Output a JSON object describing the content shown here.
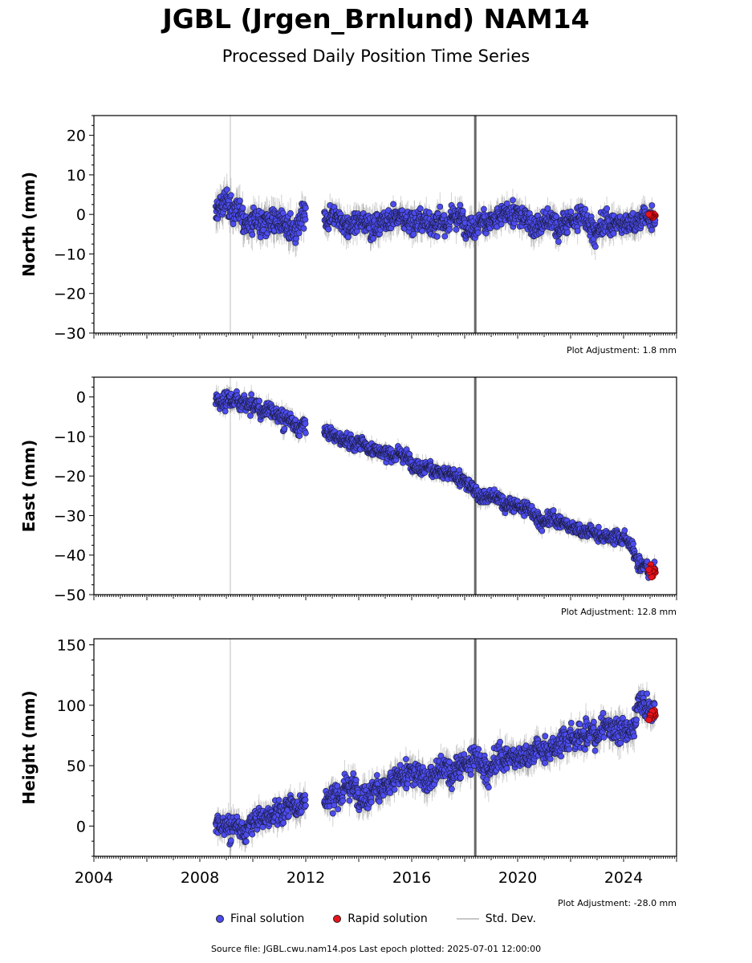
{
  "header": {
    "title": "JGBL (Jrgen_Brnlund) NAM14",
    "subtitle": "Processed Daily Position Time Series"
  },
  "legend": {
    "final": "Final solution",
    "rapid": "Rapid solution",
    "stddev": "Std. Dev."
  },
  "footer": {
    "source": "Source file: JGBL.cwu.nam14.pos  Last epoch plotted: 2025-07-01 12:00:00"
  },
  "colors": {
    "final": "#4c4cf0",
    "rapid": "#e8141c",
    "stddev": "#7a7a7a",
    "equipment_line": "#666666",
    "event_line": "#d3d3d3"
  },
  "chart_data": [
    {
      "type": "scatter",
      "ylabel": "North (mm)",
      "adjustment": "Plot Adjustment: 1.8 mm",
      "xlim": [
        2004.0,
        2026.0
      ],
      "ylim": [
        -30,
        25
      ],
      "yticks": [
        20,
        10,
        0,
        -10,
        -20,
        -30
      ],
      "ytick_labels": [
        "20",
        "10",
        "0",
        "−10",
        "−20",
        "−30"
      ],
      "vlines": [
        2009.15,
        2018.4
      ],
      "series": [
        {
          "kind": "final",
          "segments": [
            {
              "t": [
                2008.6,
                2009.0,
                2009.5,
                2010.0,
                2010.5,
                2011.0,
                2011.5,
                2012.0
              ],
              "y": [
                0.5,
                1.0,
                0.0,
                -1.0,
                0.5,
                0.0,
                -1.0,
                -1.5
              ],
              "spread": 3.0
            },
            {
              "t": [
                2012.7,
                2013.5,
                2014.5,
                2015.5,
                2016.5,
                2017.5,
                2018.5,
                2019.5,
                2020.5,
                2021.5,
                2022.5,
                2023.5,
                2024.5,
                2025.2
              ],
              "y": [
                -2.0,
                -2.0,
                -1.5,
                -1.5,
                -1.0,
                -1.5,
                -1.0,
                -0.5,
                -1.5,
                -1.5,
                -1.0,
                -2.0,
                -1.0,
                -0.5
              ],
              "spread": 2.5
            }
          ]
        },
        {
          "kind": "rapid",
          "t": [
            2025.2,
            2025.5
          ],
          "y": [
            -0.2,
            -0.2
          ],
          "spread": 0.8
        }
      ]
    },
    {
      "type": "scatter",
      "ylabel": "East (mm)",
      "adjustment": "Plot Adjustment: 12.8 mm",
      "xlim": [
        2004.0,
        2026.0
      ],
      "ylim": [
        -50,
        5
      ],
      "yticks": [
        0,
        -10,
        -20,
        -30,
        -40,
        -50
      ],
      "ytick_labels": [
        "0",
        "−10",
        "−20",
        "−30",
        "−40",
        "−50"
      ],
      "vlines": [
        2009.15,
        2018.4
      ],
      "series": [
        {
          "kind": "final",
          "segments": [
            {
              "t": [
                2008.6,
                2009.0,
                2010.0,
                2011.0,
                2012.0
              ],
              "y": [
                -1.0,
                -1.5,
                -3.0,
                -5.0,
                -6.5
              ],
              "spread": 1.8
            },
            {
              "t": [
                2012.7,
                2013.5,
                2014.5,
                2015.5,
                2016.5,
                2017.5,
                2018.5,
                2019.5,
                2020.5,
                2021.5,
                2022.5,
                2023.5,
                2024.2,
                2024.6,
                2025.2
              ],
              "y": [
                -8.5,
                -11.0,
                -13.0,
                -15.0,
                -17.0,
                -20.0,
                -24.0,
                -26.0,
                -29.0,
                -31.0,
                -33.5,
                -35.5,
                -37.0,
                -43.5,
                -44.5
              ],
              "spread": 1.5
            }
          ]
        },
        {
          "kind": "rapid",
          "t": [
            2025.2,
            2025.5
          ],
          "y": [
            -44.0,
            -44.0
          ],
          "spread": 1.2
        }
      ]
    },
    {
      "type": "scatter",
      "ylabel": "Height (mm)",
      "adjustment": "Plot Adjustment: -28.0 mm",
      "xlim": [
        2004.0,
        2026.0
      ],
      "ylim": [
        -25,
        155
      ],
      "yticks": [
        150,
        100,
        50,
        0
      ],
      "ytick_labels": [
        "150",
        "100",
        "50",
        "0"
      ],
      "xticks": [
        2004,
        2008,
        2012,
        2016,
        2020,
        2024
      ],
      "xtick_labels": [
        "2004",
        "2008",
        "2012",
        "2016",
        "2020",
        "2024"
      ],
      "vlines": [
        2009.15,
        2018.4
      ],
      "series": [
        {
          "kind": "final",
          "segments": [
            {
              "t": [
                2008.6,
                2009.5,
                2010.5,
                2011.5,
                2012.0
              ],
              "y": [
                -2.0,
                2.0,
                8.0,
                15.0,
                22.0
              ],
              "spread": 8.0
            },
            {
              "t": [
                2012.7,
                2013.5,
                2014.5,
                2015.5,
                2016.5,
                2017.5,
                2018.5,
                2019.5,
                2020.5,
                2021.5,
                2022.5,
                2023.5,
                2024.2,
                2024.6,
                2025.2
              ],
              "y": [
                22.0,
                28.0,
                33.0,
                38.0,
                43.0,
                50.0,
                55.0,
                58.0,
                62.0,
                66.0,
                70.0,
                75.0,
                78.0,
                105.0,
                92.0
              ],
              "spread": 9.0
            }
          ]
        },
        {
          "kind": "rapid",
          "t": [
            2025.2,
            2025.5
          ],
          "y": [
            92.0,
            92.0
          ],
          "spread": 4.0
        }
      ]
    }
  ]
}
